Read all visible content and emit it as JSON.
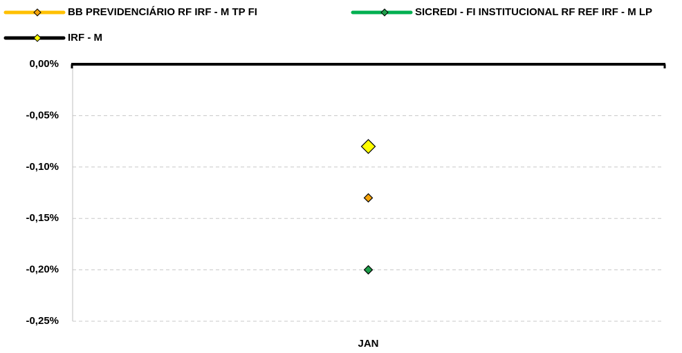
{
  "chart_data": {
    "type": "line",
    "categories": [
      "JAN"
    ],
    "series": [
      {
        "name": "BB PREVIDENCIÁRIO RF IRF - M TP FI",
        "color": "#ffc000",
        "marker_color": "#f5a40c",
        "marker_size": 6,
        "values": [
          -0.13
        ]
      },
      {
        "name": "SICREDI - FI INSTITUCIONAL RF REF IRF - M LP",
        "color": "#00b050",
        "marker_color": "#1e9e4a",
        "marker_size": 6,
        "values": [
          -0.2
        ]
      },
      {
        "name": "IRF - M",
        "color": "#000000",
        "marker_color": "#ffff00",
        "marker_size": 10,
        "values": [
          -0.08
        ]
      }
    ],
    "ylim": [
      -0.25,
      0
    ],
    "yticks": [
      {
        "value": 0,
        "label": "0,00%"
      },
      {
        "value": -0.05,
        "label": "-0,05%"
      },
      {
        "value": -0.1,
        "label": "-0,10%"
      },
      {
        "value": -0.15,
        "label": "-0,15%"
      },
      {
        "value": -0.2,
        "label": "-0,20%"
      },
      {
        "value": -0.25,
        "label": "-0,25%"
      }
    ],
    "grid": true
  }
}
